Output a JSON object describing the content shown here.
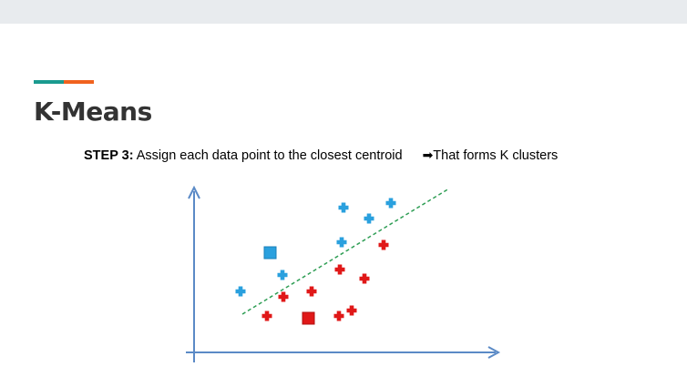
{
  "slide": {
    "title": "K-Means",
    "step_label": "STEP 3:",
    "step_text": " Assign each data point to the closest centroid",
    "result_arrow": "➡",
    "result_text": "That forms K clusters"
  },
  "diagram": {
    "colors": {
      "axis": "#5b8ac6",
      "cluster_blue": "#2aa0de",
      "cluster_red": "#e01818",
      "divider": "#2f9e55"
    },
    "blue_points": 7,
    "red_points": 10,
    "centroids": [
      "blue",
      "red"
    ]
  }
}
